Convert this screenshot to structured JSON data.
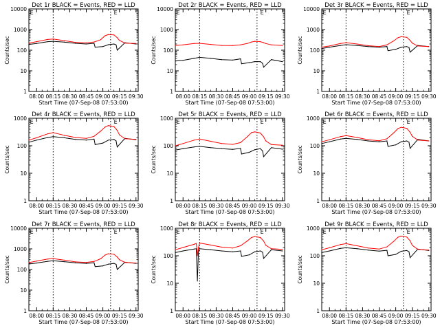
{
  "figure": {
    "xlabel": "Start Time (07-Sep-08 07:53:00)",
    "ylabel": "Counts/sec",
    "x_ticks": [
      "08:00",
      "08:15",
      "08:30",
      "08:45",
      "09:00",
      "09:15",
      "09:30"
    ],
    "y_ticks": [
      "1",
      "10",
      "100",
      "1000",
      "10000"
    ],
    "colors": {
      "events": "#000000",
      "lld": "#ff0000",
      "axes": "#000000"
    }
  },
  "chart_data": [
    {
      "type": "line",
      "title": "Det 1r BLACK = Events, RED = LLD",
      "ylim": [
        1,
        10000
      ],
      "yscale": "log",
      "flag_labels": [
        "E",
        "E"
      ],
      "series": [
        {
          "name": "Events",
          "color": "#000000",
          "x": [
            "07:53",
            "08:00",
            "08:10",
            "08:15",
            "08:25",
            "08:35",
            "08:45",
            "08:52",
            "08:53",
            "09:00",
            "09:05",
            "09:10",
            "09:12",
            "09:13",
            "09:20",
            "09:30"
          ],
          "values": [
            190,
            210,
            260,
            270,
            245,
            215,
            200,
            215,
            140,
            150,
            185,
            200,
            180,
            100,
            230,
            200
          ]
        },
        {
          "name": "LLD",
          "color": "#ff0000",
          "x": [
            "07:53",
            "08:00",
            "08:10",
            "08:15",
            "08:25",
            "08:35",
            "08:45",
            "08:52",
            "08:58",
            "09:02",
            "09:05",
            "09:10",
            "09:13",
            "09:15",
            "09:20",
            "09:30"
          ],
          "values": [
            220,
            260,
            330,
            350,
            290,
            240,
            225,
            250,
            320,
            500,
            570,
            550,
            400,
            300,
            220,
            210
          ]
        }
      ]
    },
    {
      "type": "line",
      "title": "Det 2r BLACK = Events, RED = LLD",
      "ylim": [
        1,
        10000
      ],
      "yscale": "log",
      "flag_labels": [
        "E",
        "E"
      ],
      "series": [
        {
          "name": "Events",
          "color": "#000000",
          "x": [
            "07:53",
            "08:00",
            "08:10",
            "08:15",
            "08:25",
            "08:35",
            "08:45",
            "08:52",
            "08:53",
            "09:00",
            "09:05",
            "09:10",
            "09:12",
            "09:13",
            "09:20",
            "09:30"
          ],
          "values": [
            30,
            32,
            40,
            45,
            40,
            35,
            33,
            38,
            22,
            25,
            28,
            28,
            23,
            15,
            35,
            28
          ]
        },
        {
          "name": "LLD",
          "color": "#ff0000",
          "x": [
            "07:53",
            "08:00",
            "08:10",
            "08:15",
            "08:25",
            "08:35",
            "08:45",
            "08:52",
            "08:58",
            "09:02",
            "09:05",
            "09:10",
            "09:13",
            "09:15",
            "09:20",
            "09:30"
          ],
          "values": [
            170,
            180,
            210,
            215,
            190,
            170,
            168,
            180,
            210,
            250,
            270,
            260,
            230,
            210,
            180,
            170
          ]
        }
      ]
    },
    {
      "type": "line",
      "title": "Det 3r BLACK = Events, RED = LLD",
      "ylim": [
        1,
        10000
      ],
      "yscale": "log",
      "flag_labels": [
        "E",
        "E"
      ],
      "series": [
        {
          "name": "Events",
          "color": "#000000",
          "x": [
            "07:53",
            "08:00",
            "08:10",
            "08:15",
            "08:25",
            "08:35",
            "08:45",
            "08:52",
            "08:53",
            "09:00",
            "09:05",
            "09:10",
            "09:12",
            "09:13",
            "09:20",
            "09:30"
          ],
          "values": [
            120,
            140,
            170,
            185,
            170,
            150,
            140,
            150,
            95,
            110,
            140,
            150,
            135,
            80,
            170,
            150
          ]
        },
        {
          "name": "LLD",
          "color": "#ff0000",
          "x": [
            "07:53",
            "08:00",
            "08:10",
            "08:15",
            "08:25",
            "08:35",
            "08:45",
            "08:52",
            "08:58",
            "09:02",
            "09:05",
            "09:10",
            "09:13",
            "09:15",
            "09:20",
            "09:30"
          ],
          "values": [
            140,
            160,
            210,
            230,
            200,
            165,
            150,
            180,
            280,
            400,
            450,
            420,
            300,
            220,
            160,
            150
          ]
        }
      ]
    },
    {
      "type": "line",
      "title": "Det 4r BLACK = Events, RED = LLD",
      "ylim": [
        1,
        1000
      ],
      "yscale": "log",
      "flag_labels": [
        "E",
        "E"
      ],
      "series": [
        {
          "name": "Events",
          "color": "#000000",
          "x": [
            "07:53",
            "08:00",
            "08:10",
            "08:15",
            "08:25",
            "08:35",
            "08:45",
            "08:52",
            "08:53",
            "09:00",
            "09:05",
            "09:10",
            "09:12",
            "09:13",
            "09:20",
            "09:30"
          ],
          "values": [
            135,
            160,
            200,
            215,
            195,
            170,
            160,
            175,
            110,
            125,
            160,
            170,
            150,
            90,
            185,
            165
          ]
        },
        {
          "name": "LLD",
          "color": "#ff0000",
          "x": [
            "07:53",
            "08:00",
            "08:10",
            "08:15",
            "08:25",
            "08:35",
            "08:45",
            "08:52",
            "08:58",
            "09:02",
            "09:05",
            "09:10",
            "09:13",
            "09:15",
            "09:20",
            "09:30"
          ],
          "values": [
            160,
            195,
            270,
            300,
            240,
            200,
            185,
            220,
            340,
            480,
            540,
            500,
            360,
            250,
            180,
            170
          ]
        }
      ]
    },
    {
      "type": "line",
      "title": "Det 5r BLACK = Events, RED = LLD",
      "ylim": [
        1,
        1000
      ],
      "yscale": "log",
      "flag_labels": [
        "E",
        "E"
      ],
      "series": [
        {
          "name": "Events",
          "color": "#000000",
          "x": [
            "07:53",
            "08:00",
            "08:10",
            "08:15",
            "08:25",
            "08:35",
            "08:45",
            "08:52",
            "08:53",
            "09:00",
            "09:05",
            "09:10",
            "09:12",
            "09:13",
            "09:20",
            "09:30"
          ],
          "values": [
            70,
            78,
            90,
            95,
            85,
            78,
            74,
            80,
            50,
            58,
            72,
            78,
            65,
            40,
            85,
            75
          ]
        },
        {
          "name": "LLD",
          "color": "#ff0000",
          "x": [
            "07:53",
            "08:00",
            "08:10",
            "08:15",
            "08:25",
            "08:35",
            "08:45",
            "08:52",
            "08:58",
            "09:02",
            "09:05",
            "09:10",
            "09:13",
            "09:15",
            "09:20",
            "09:30"
          ],
          "values": [
            100,
            120,
            160,
            175,
            145,
            120,
            112,
            130,
            210,
            300,
            320,
            290,
            210,
            150,
            110,
            105
          ]
        }
      ]
    },
    {
      "type": "line",
      "title": "Det 6r BLACK = Events, RED = LLD",
      "ylim": [
        1,
        1000
      ],
      "yscale": "log",
      "flag_labels": [
        "E",
        "E"
      ],
      "series": [
        {
          "name": "Events",
          "color": "#000000",
          "x": [
            "07:53",
            "08:00",
            "08:10",
            "08:15",
            "08:25",
            "08:35",
            "08:45",
            "08:52",
            "08:53",
            "09:00",
            "09:05",
            "09:10",
            "09:12",
            "09:13",
            "09:20",
            "09:30"
          ],
          "values": [
            120,
            140,
            175,
            185,
            170,
            150,
            140,
            150,
            95,
            108,
            140,
            150,
            135,
            80,
            170,
            150
          ]
        },
        {
          "name": "LLD",
          "color": "#ff0000",
          "x": [
            "07:53",
            "08:00",
            "08:10",
            "08:15",
            "08:25",
            "08:35",
            "08:45",
            "08:52",
            "08:58",
            "09:02",
            "09:05",
            "09:10",
            "09:13",
            "09:15",
            "09:20",
            "09:30"
          ],
          "values": [
            140,
            165,
            215,
            235,
            200,
            165,
            152,
            180,
            290,
            420,
            470,
            430,
            310,
            220,
            160,
            150
          ]
        }
      ]
    },
    {
      "type": "line",
      "title": "Det 7r BLACK = Events, RED = LLD",
      "ylim": [
        1,
        10000
      ],
      "yscale": "log",
      "flag_labels": [
        "E",
        "E"
      ],
      "series": [
        {
          "name": "Events",
          "color": "#000000",
          "x": [
            "07:53",
            "08:00",
            "08:10",
            "08:15",
            "08:25",
            "08:35",
            "08:45",
            "08:52",
            "08:53",
            "09:00",
            "09:05",
            "09:10",
            "09:12",
            "09:13",
            "09:20",
            "09:30"
          ],
          "values": [
            185,
            205,
            250,
            265,
            240,
            210,
            198,
            212,
            138,
            150,
            182,
            198,
            178,
            100,
            225,
            198
          ]
        },
        {
          "name": "LLD",
          "color": "#ff0000",
          "x": [
            "07:53",
            "08:00",
            "08:10",
            "08:15",
            "08:25",
            "08:35",
            "08:45",
            "08:52",
            "08:58",
            "09:02",
            "09:05",
            "09:10",
            "09:13",
            "09:15",
            "09:20",
            "09:30"
          ],
          "values": [
            215,
            255,
            320,
            340,
            285,
            235,
            220,
            245,
            330,
            500,
            580,
            550,
            400,
            300,
            220,
            205
          ]
        }
      ]
    },
    {
      "type": "line",
      "title": "Det 8r BLACK = Events, RED = LLD",
      "ylim": [
        1,
        1000
      ],
      "yscale": "log",
      "flag_labels": [
        "E",
        "E"
      ],
      "series": [
        {
          "name": "Events",
          "color": "#000000",
          "x": [
            "07:53",
            "08:00",
            "08:10",
            "08:12",
            "08:13",
            "08:14",
            "08:15",
            "08:25",
            "08:35",
            "08:45",
            "08:52",
            "08:53",
            "09:00",
            "09:05",
            "09:10",
            "09:12",
            "09:13",
            "09:20",
            "09:30"
          ],
          "values": [
            130,
            150,
            175,
            180,
            12,
            150,
            180,
            165,
            150,
            140,
            150,
            95,
            108,
            140,
            150,
            135,
            80,
            165,
            150
          ]
        },
        {
          "name": "LLD",
          "color": "#ff0000",
          "x": [
            "07:53",
            "08:00",
            "08:10",
            "08:12",
            "08:13",
            "08:14",
            "08:15",
            "08:25",
            "08:35",
            "08:45",
            "08:52",
            "08:58",
            "09:02",
            "09:05",
            "09:10",
            "09:13",
            "09:15",
            "09:20",
            "09:30"
          ],
          "values": [
            165,
            200,
            260,
            280,
            100,
            200,
            290,
            245,
            205,
            190,
            230,
            340,
            460,
            500,
            460,
            340,
            240,
            180,
            170
          ]
        }
      ]
    },
    {
      "type": "line",
      "title": "Det 9r BLACK = Events, RED = LLD",
      "ylim": [
        1,
        1000
      ],
      "yscale": "log",
      "flag_labels": [
        "E",
        "E"
      ],
      "series": [
        {
          "name": "Events",
          "color": "#000000",
          "x": [
            "07:53",
            "08:00",
            "08:10",
            "08:15",
            "08:25",
            "08:35",
            "08:45",
            "08:52",
            "08:53",
            "09:00",
            "09:05",
            "09:10",
            "09:12",
            "09:13",
            "09:20",
            "09:30"
          ],
          "values": [
            130,
            150,
            185,
            195,
            180,
            160,
            148,
            158,
            100,
            112,
            145,
            155,
            140,
            85,
            175,
            155
          ]
        },
        {
          "name": "LLD",
          "color": "#ff0000",
          "x": [
            "07:53",
            "08:00",
            "08:10",
            "08:15",
            "08:25",
            "08:35",
            "08:45",
            "08:52",
            "08:58",
            "09:02",
            "09:05",
            "09:10",
            "09:13",
            "09:15",
            "09:20",
            "09:30"
          ],
          "values": [
            165,
            195,
            255,
            275,
            230,
            190,
            175,
            210,
            330,
            470,
            520,
            480,
            350,
            240,
            170,
            160
          ]
        }
      ]
    }
  ]
}
